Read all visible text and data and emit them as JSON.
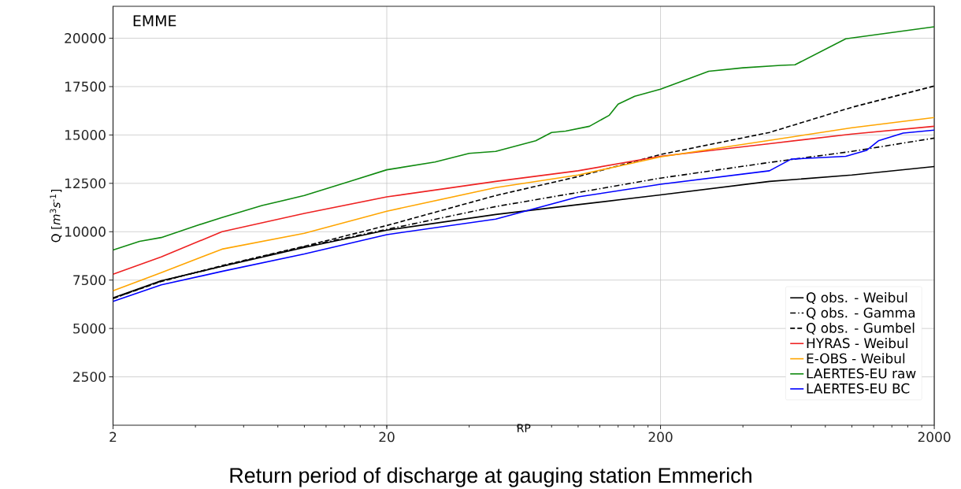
{
  "chart_data": {
    "type": "line",
    "title": "EMME",
    "xlabel": "RP",
    "ylabel": "Q [*m*$^{3}$*s*$^{-1}$]",
    "annotations": [
      "Return period of discharge at gauging station Emmerich"
    ],
    "log": "x",
    "grid": true,
    "legend": "bottom right",
    "xlim": [
      2,
      2000
    ],
    "xticks": [
      2,
      20,
      200,
      2000
    ],
    "ylim": [
      0,
      21650
    ],
    "yticks": [
      2500,
      5000,
      7500,
      10000,
      12500,
      15000,
      17500,
      20000
    ],
    "series": [
      {
        "name": "Q obs. - Weibul",
        "color": "#000000",
        "line_style": "solid",
        "x": [
          2,
          3,
          5,
          10,
          20,
          50,
          100,
          200,
          500,
          1000,
          2000
        ],
        "values": [
          6580,
          7470,
          8210,
          9190,
          10080,
          10890,
          11400,
          11900,
          12600,
          12930,
          13370
        ]
      },
      {
        "name": "Q obs. - Gamma",
        "color": "#000000",
        "line_style": "dashdot",
        "x": [
          2,
          3,
          5,
          10,
          20,
          50,
          100,
          200,
          500,
          1000,
          2000
        ],
        "values": [
          6550,
          7450,
          8220,
          9230,
          10120,
          11300,
          12030,
          12770,
          13580,
          14150,
          14840
        ]
      },
      {
        "name": "Q obs. - Gumbel",
        "color": "#000000",
        "line_style": "dashed",
        "x": [
          2,
          3,
          5,
          10,
          20,
          50,
          100,
          200,
          500,
          1000,
          2000
        ],
        "values": [
          6550,
          7430,
          8250,
          9250,
          10320,
          11870,
          12850,
          13990,
          15130,
          16430,
          17530
        ]
      },
      {
        "name": "HYRAS - Weibul",
        "color": "#ee2222",
        "line_style": "solid",
        "x": [
          2,
          3,
          5,
          10,
          20,
          50,
          100,
          200,
          500,
          1000,
          2000
        ],
        "values": [
          7800,
          8700,
          10000,
          10950,
          11800,
          12600,
          13150,
          13900,
          14550,
          15050,
          15450
        ]
      },
      {
        "name": "E-OBS - Weibul",
        "color": "#ffa500",
        "line_style": "solid",
        "x": [
          2,
          3,
          5,
          10,
          20,
          50,
          100,
          200,
          500,
          1000,
          2000
        ],
        "values": [
          6950,
          7880,
          9100,
          9920,
          11060,
          12280,
          12930,
          13870,
          14720,
          15370,
          15900
        ]
      },
      {
        "name": "LAERTES-EU raw",
        "color": "#108a10",
        "line_style": "solid",
        "x": [
          2,
          2.5,
          3,
          4,
          5,
          7,
          10,
          15,
          20,
          30,
          40,
          50,
          70,
          80,
          90,
          110,
          130,
          140,
          161,
          200,
          250,
          300,
          400,
          550,
          620,
          950,
          2000
        ],
        "values": [
          9050,
          9500,
          9700,
          10300,
          10730,
          11350,
          11870,
          12650,
          13200,
          13600,
          14050,
          14150,
          14700,
          15130,
          15200,
          15450,
          16020,
          16590,
          17000,
          17370,
          17880,
          18290,
          18470,
          18600,
          18630,
          19970,
          20590
        ]
      },
      {
        "name": "LAERTES-EU BC",
        "color": "#0000ff",
        "line_style": "solid",
        "x": [
          2,
          3,
          5,
          10,
          20,
          50,
          100,
          200,
          500,
          600,
          950,
          1130,
          1250,
          1540,
          2000
        ],
        "values": [
          6400,
          7250,
          7950,
          8850,
          9850,
          10650,
          11800,
          12450,
          13150,
          13750,
          13900,
          14200,
          14700,
          15100,
          15250
        ]
      }
    ]
  }
}
